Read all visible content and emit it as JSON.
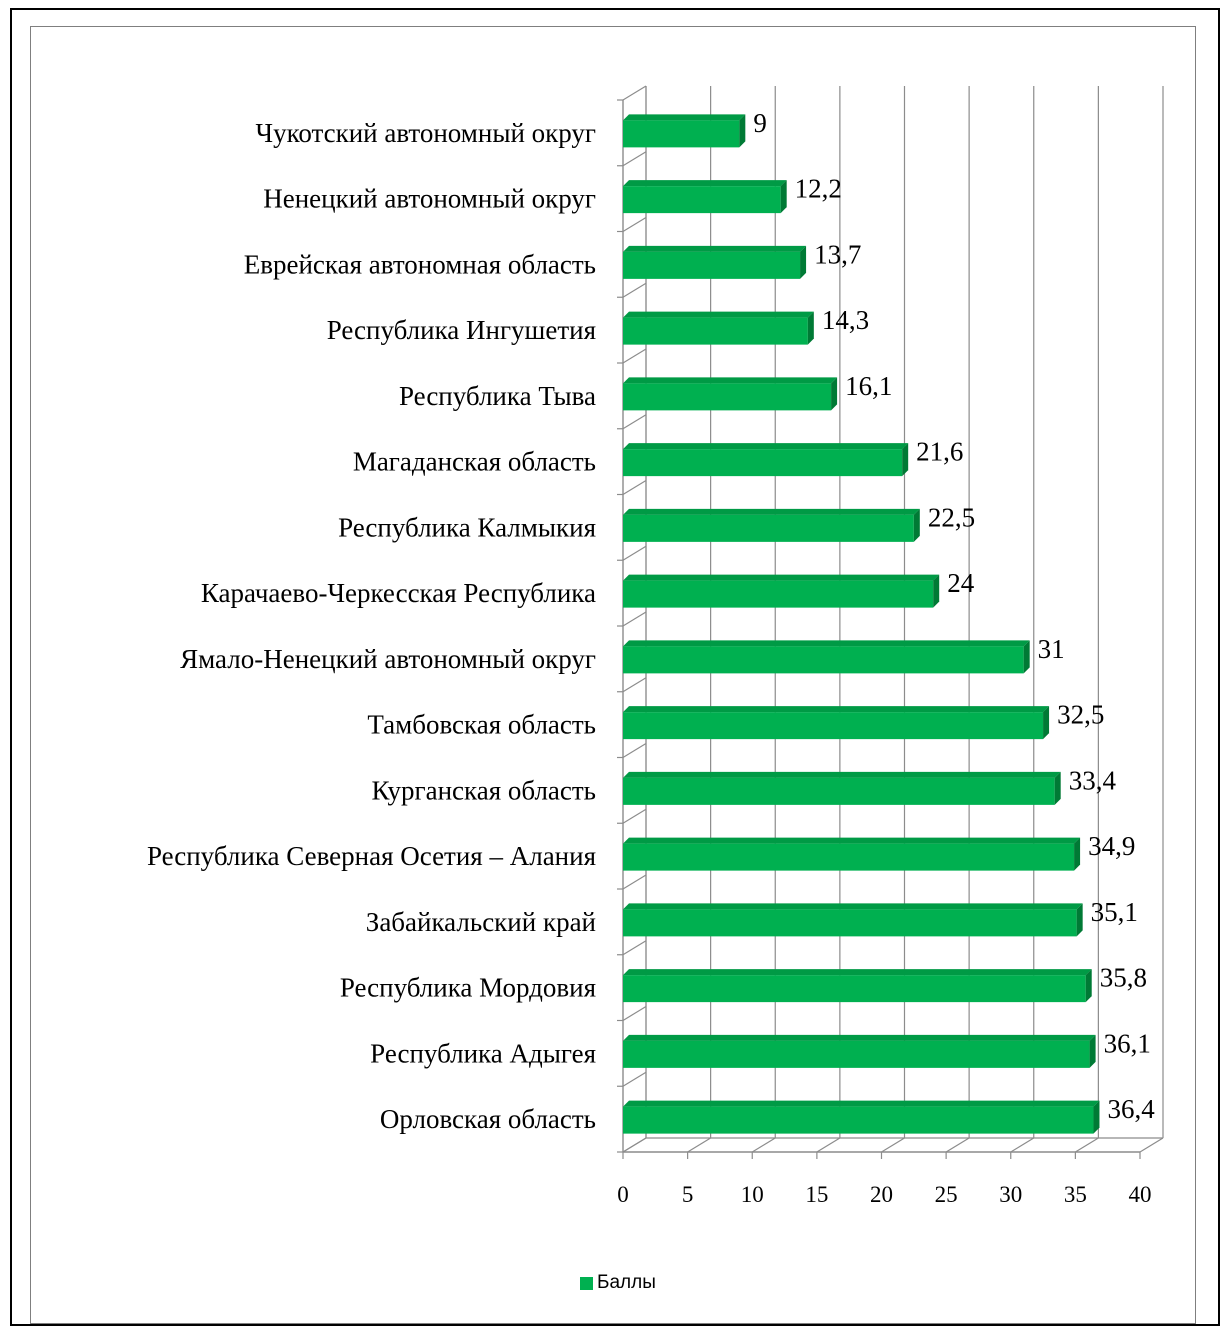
{
  "chart_data": {
    "type": "bar",
    "orientation": "horizontal",
    "style": "3d",
    "categories": [
      "Чукотский автономный округ",
      "Ненецкий автономный округ",
      "Еврейская автономная область",
      "Республика Ингушетия",
      "Республика Тыва",
      "Магаданская область",
      "Республика Калмыкия",
      "Карачаево-Черкесская Республика",
      "Ямало-Ненецкий автономный округ",
      "Тамбовская область",
      "Курганская область",
      "Республика Северная Осетия – Алания",
      "Забайкальский край",
      "Республика Мордовия",
      "Республика Адыгея",
      "Орловская область"
    ],
    "series": [
      {
        "name": "Баллы",
        "values": [
          9,
          12.2,
          13.7,
          14.3,
          16.1,
          21.6,
          22.5,
          24,
          31,
          32.5,
          33.4,
          34.9,
          35.1,
          35.8,
          36.1,
          36.4
        ],
        "labels": [
          "9",
          "12,2",
          "13,7",
          "14,3",
          "16,1",
          "21,6",
          "22,5",
          "24",
          "31",
          "32,5",
          "33,4",
          "34,9",
          "35,1",
          "35,8",
          "36,1",
          "36,4"
        ],
        "color": "#00b050"
      }
    ],
    "xlim": [
      0,
      40
    ],
    "x_ticks": [
      "0",
      "5",
      "10",
      "15",
      "20",
      "25",
      "30",
      "35",
      "40"
    ],
    "grid": true,
    "legend": {
      "position": "bottom",
      "entries": [
        "Баллы"
      ]
    }
  }
}
